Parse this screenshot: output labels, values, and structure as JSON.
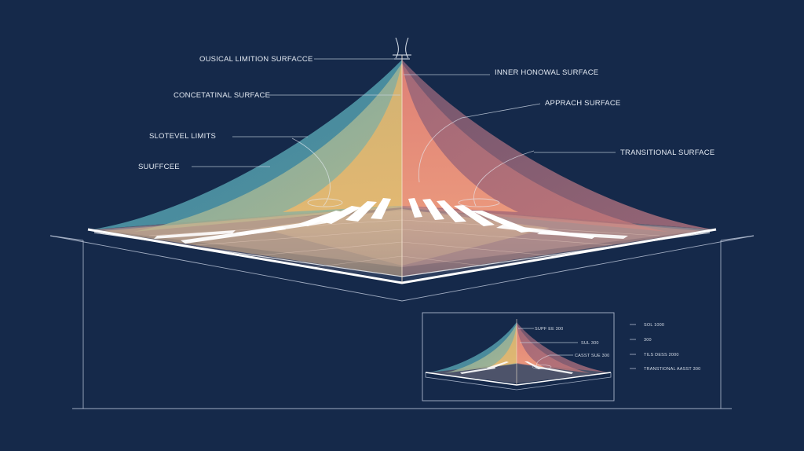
{
  "diagram": {
    "labels_left": [
      "OUSICAL LIMITION SURFACCE",
      "CONCETATINAL SURFACE",
      "SLOTEVEL LIMITS",
      "SUUFFCEE"
    ],
    "labels_right": [
      "INNER HONOWAL SURFACE",
      "APPRACH SURFACE",
      "TRANSITIONAL SURFACE"
    ]
  },
  "inset": {
    "labels_inner": [
      "SUPF EE 300",
      "SUL 300",
      "CASST SUE 300"
    ],
    "labels_outer": [
      "SOL 1000",
      "300",
      "TILS DESS 2000",
      "TRANSTIONAL AASST 300"
    ]
  },
  "colors": {
    "background": "#15294a",
    "teal": "#4f93a6",
    "sage": "#a7b794",
    "gold": "#e2b06c",
    "coral": "#e78174",
    "mauve": "#8c6276",
    "runway": "#ffffff"
  }
}
